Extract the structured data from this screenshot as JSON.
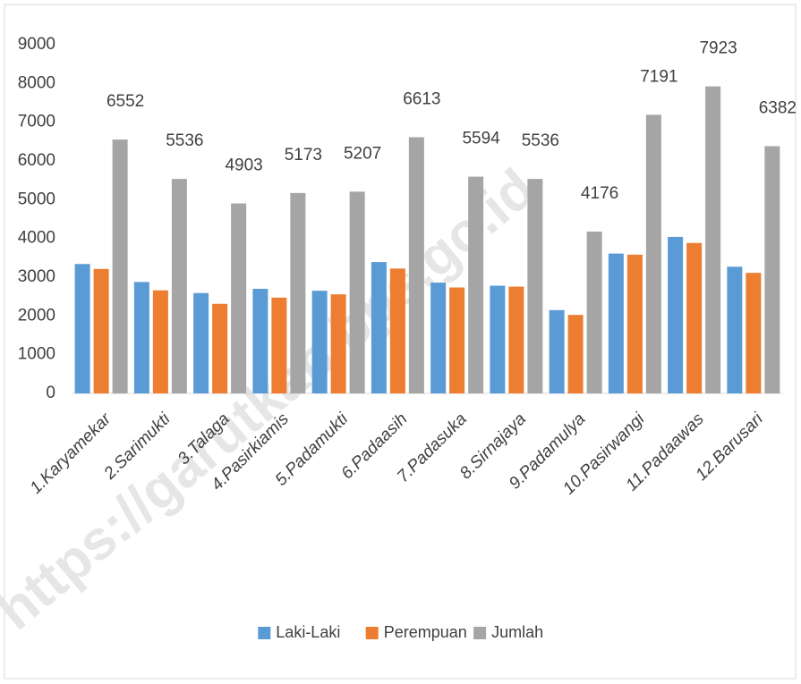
{
  "chart_data": {
    "type": "bar",
    "categories": [
      "1.Karyamekar",
      "2.Sarimukti",
      "3.Talaga",
      "4.Pasirkiamis",
      "5.Padamukti",
      "6.Padaasih",
      "7.Padasuka",
      "8.Sirnajaya",
      "9.Padamulya",
      "10.Pasirwangi",
      "11.Padaawas",
      "12.Barusari"
    ],
    "series": [
      {
        "name": "Laki-Laki",
        "color": "#5b9bd5",
        "values": [
          3340,
          2876,
          2590,
          2700,
          2650,
          3390,
          2860,
          2780,
          2150,
          3610,
          4040,
          3270
        ]
      },
      {
        "name": "Perempuan",
        "color": "#ed7d31",
        "values": [
          3212,
          2660,
          2313,
          2473,
          2557,
          3223,
          2734,
          2756,
          2026,
          3581,
          3883,
          3112
        ]
      },
      {
        "name": "Jumlah",
        "color": "#a5a5a5",
        "values": [
          6552,
          5536,
          4903,
          5173,
          5207,
          6613,
          5594,
          5536,
          4176,
          7191,
          7923,
          6382
        ],
        "data_labels": true
      }
    ],
    "ylim": [
      0,
      9000
    ],
    "yticks": [
      0,
      1000,
      2000,
      3000,
      4000,
      5000,
      6000,
      7000,
      8000,
      9000
    ],
    "grid": false,
    "legend": "bottom",
    "watermark": "https://garutkab.bps.go.id"
  }
}
